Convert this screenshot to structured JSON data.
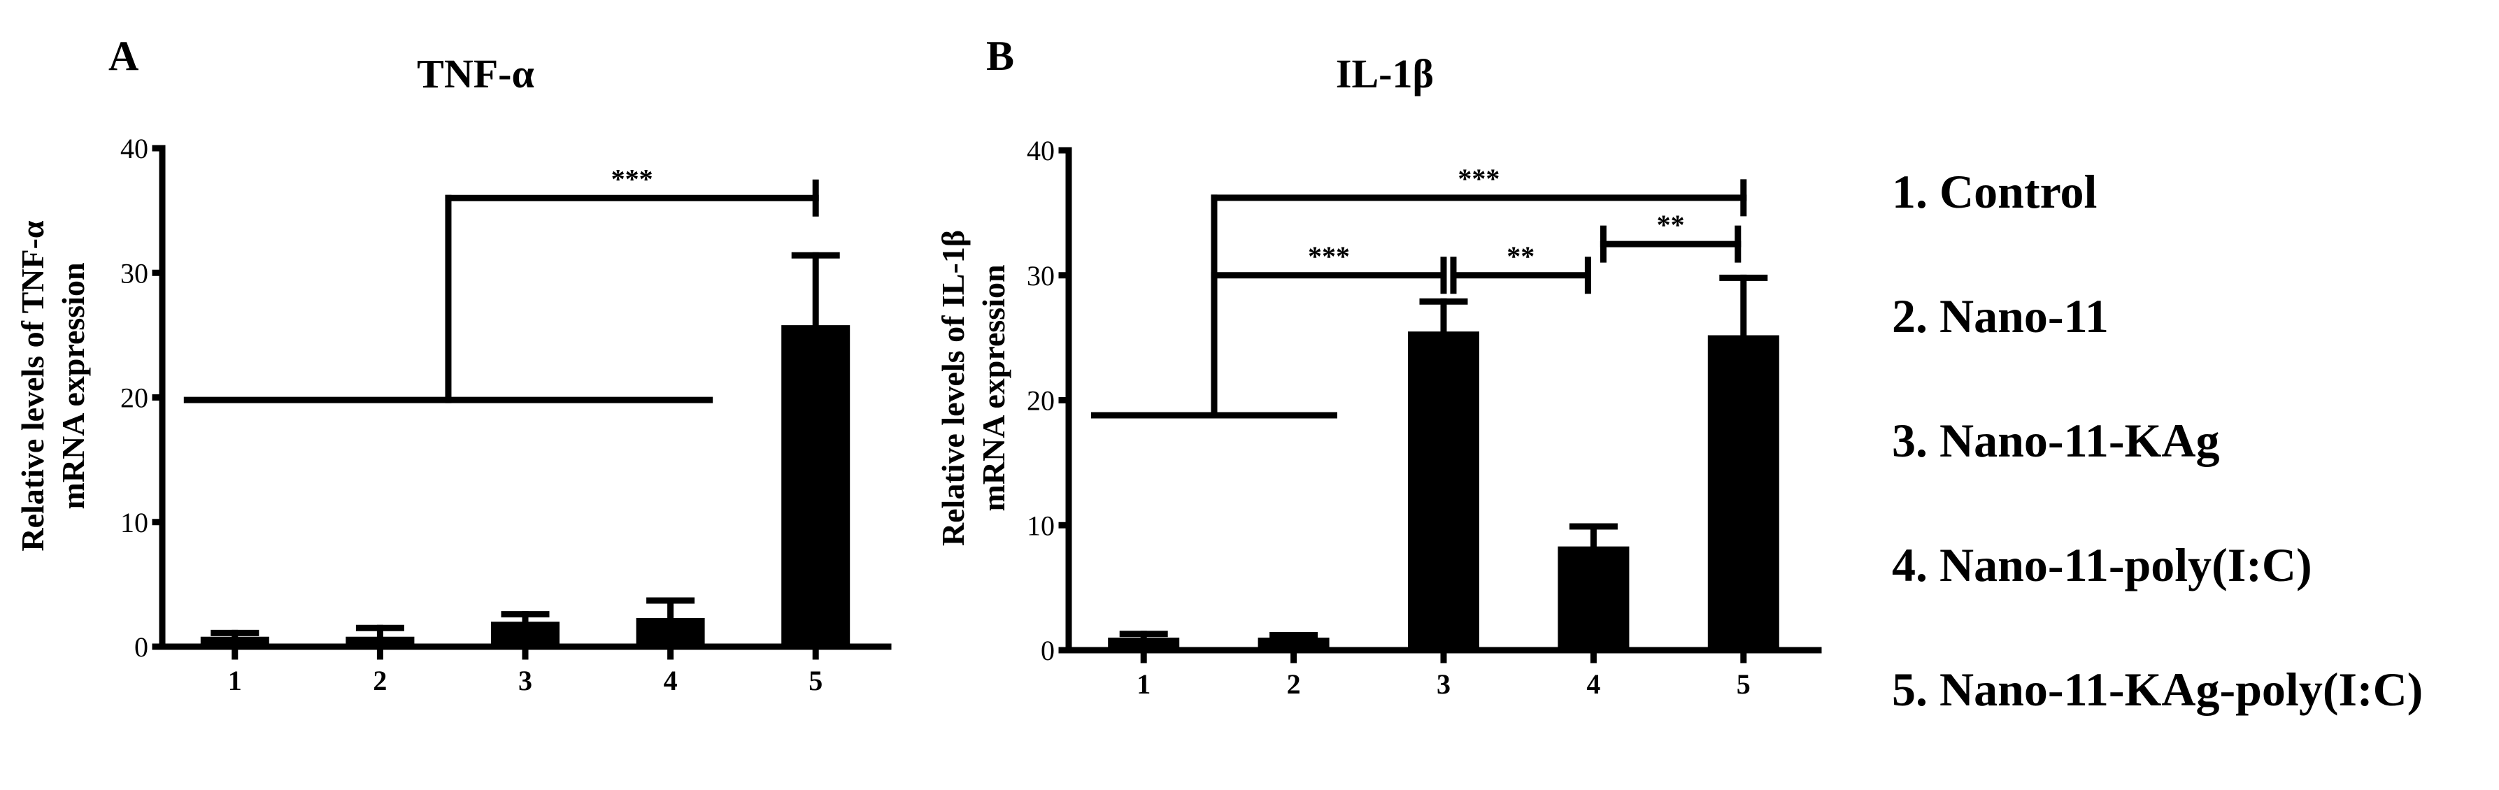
{
  "chart_data": [
    {
      "type": "bar",
      "panel": "A",
      "title": "TNF-α",
      "ylabel_lines": [
        "Relative levels of TNF-α",
        "mRNA expression"
      ],
      "categories": [
        "1",
        "2",
        "3",
        "4",
        "5"
      ],
      "values": [
        0.8,
        0.8,
        2.0,
        2.3,
        25.8
      ],
      "errors": [
        0.3,
        0.7,
        0.6,
        1.4,
        5.6
      ],
      "ylim": [
        0,
        40
      ],
      "yticks": [
        0,
        10,
        20,
        30,
        40
      ],
      "bar_color": "#000000",
      "significance": [
        {
          "from_group": [
            1,
            4
          ],
          "to": 5,
          "label": "***",
          "left_level": 19.8,
          "right_level": 36.0
        }
      ]
    },
    {
      "type": "bar",
      "panel": "B",
      "title": "IL-1β",
      "ylabel_lines": [
        "Relative levels of IL-1β",
        "mRNA expression"
      ],
      "categories": [
        "1",
        "2",
        "3",
        "4",
        "5"
      ],
      "values": [
        1.0,
        1.0,
        25.5,
        8.3,
        25.2
      ],
      "errors": [
        0.3,
        0.2,
        2.4,
        1.6,
        4.6
      ],
      "ylim": [
        0,
        40
      ],
      "yticks": [
        0,
        10,
        20,
        30,
        40
      ],
      "bar_color": "#000000",
      "significance": [
        {
          "from_group": [
            1,
            2
          ],
          "to": 5,
          "label": "***",
          "left_level": 18.8,
          "right_level": 36.2
        },
        {
          "from_group": [
            1,
            2
          ],
          "to": 3,
          "label": "***",
          "left_level": 18.8,
          "right_level": 30.0
        },
        {
          "from": 3,
          "to": 4,
          "label": "**",
          "level": 30.0
        },
        {
          "from": 4,
          "to": 5,
          "label": "**",
          "level": 32.5
        }
      ]
    }
  ],
  "legend": [
    "1. Control",
    "2. Nano-11",
    "3. Nano-11-KAg",
    "4. Nano-11-poly(I:C)",
    "5. Nano-11-KAg-poly(I:C)"
  ]
}
